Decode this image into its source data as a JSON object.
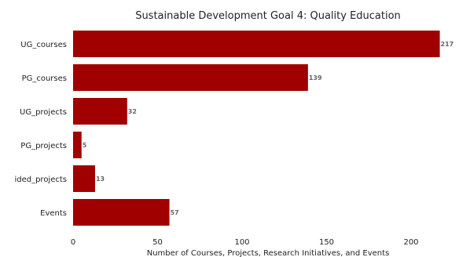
{
  "chart_data": {
    "type": "bar",
    "orientation": "horizontal",
    "title": "Sustainable Development Goal 4: Quality Education",
    "xlabel": "Number of Courses, Projects, Research Initiatives, and Events",
    "ylabel": "",
    "categories": [
      "UG_courses",
      "PG_courses",
      "UG_projects",
      "PG_projects",
      "Funded_projects",
      "Events"
    ],
    "category_labels_visible": [
      "UG_courses",
      "PG_courses",
      "UG_projects",
      "PG_projects",
      "ided_projects",
      "Events"
    ],
    "values": [
      217,
      139,
      32,
      5,
      13,
      57
    ],
    "xlim": [
      0,
      220
    ],
    "xticks": [
      0,
      50,
      100,
      150,
      200
    ],
    "bar_color": "#a00000",
    "data_label_color": "#666666",
    "grid": false,
    "legend": "none"
  }
}
